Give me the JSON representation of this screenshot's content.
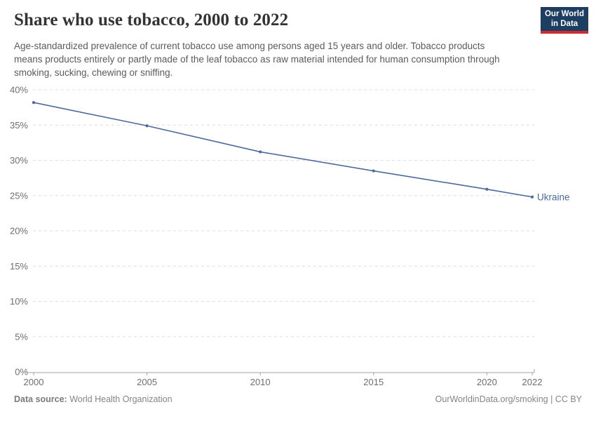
{
  "header": {
    "title": "Share who use tobacco, 2000 to 2022",
    "subtitle": "Age-standardized prevalence of current tobacco use among persons aged 15 years and older. Tobacco products means products entirely or partly made of the leaf tobacco as raw material intended for human consumption through smoking, sucking, chewing or sniffing.",
    "logo": {
      "line1": "Our World",
      "line2": "in Data"
    }
  },
  "chart_data": {
    "type": "line",
    "title": "Share who use tobacco, 2000 to 2022",
    "x": [
      2000,
      2005,
      2010,
      2015,
      2020,
      2022
    ],
    "series": [
      {
        "name": "Ukraine",
        "values": [
          38.2,
          34.9,
          31.2,
          28.5,
          25.9,
          24.8
        ],
        "color": "#4c6a9c"
      }
    ],
    "xlabel": "",
    "ylabel": "",
    "xlim": [
      2000,
      2022
    ],
    "ylim": [
      0,
      40
    ],
    "x_tick_values": [
      2000,
      2005,
      2010,
      2015,
      2020,
      2022
    ],
    "x_tick_labels": [
      "2000",
      "2005",
      "2010",
      "2015",
      "2020",
      "2022"
    ],
    "y_tick_values": [
      0,
      5,
      10,
      15,
      20,
      25,
      30,
      35,
      40
    ],
    "y_tick_labels": [
      "0%",
      "5%",
      "10%",
      "15%",
      "20%",
      "25%",
      "30%",
      "35%",
      "40%"
    ],
    "grid": "horizontal-dashed",
    "legend_position": "end-of-line-label",
    "marker": "circle"
  },
  "footer": {
    "source_label": "Data source:",
    "source_value": " World Health Organization",
    "attribution": "OurWorldinData.org/smoking | CC BY"
  },
  "colors": {
    "line": "#4c6a9c",
    "grid": "#dddddd",
    "axis": "#a3a3a3",
    "tick_label": "#6e6e6e",
    "title": "#333333",
    "subtitle": "#5b5b5b",
    "footer": "#858585",
    "logo_bg": "#1d3d63",
    "logo_stripe": "#d42b2f"
  }
}
